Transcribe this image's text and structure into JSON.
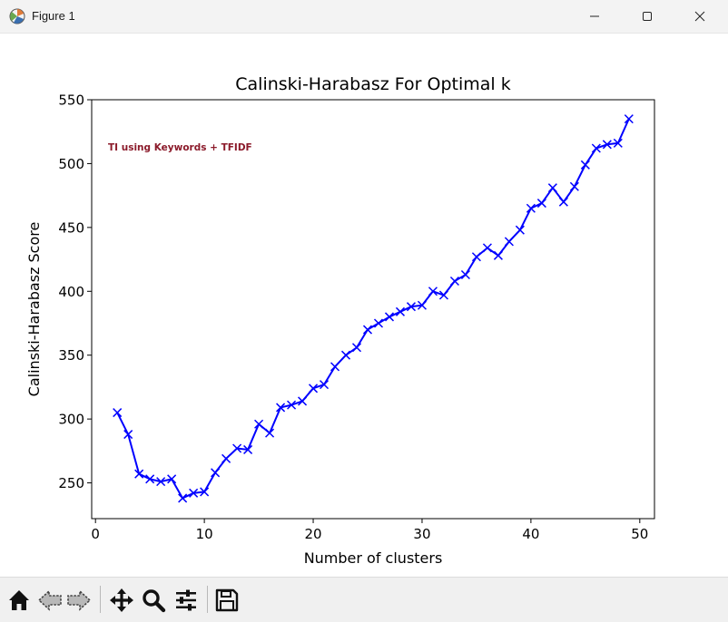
{
  "window": {
    "title": "Figure 1",
    "icon": "figure-app-icon",
    "controls": [
      "minimize-icon",
      "maximize-icon",
      "close-icon"
    ]
  },
  "toolbar": {
    "tools": [
      "home-icon",
      "back-arrow-icon",
      "forward-arrow-icon",
      "pan-icon",
      "zoom-icon",
      "configure-subplots-icon",
      "save-icon"
    ]
  },
  "chart_data": {
    "type": "line",
    "title": "Calinski-Harabasz For Optimal k",
    "xlabel": "Number of clusters",
    "ylabel": "Calinski-Harabasz Score",
    "annotation": "TI using Keywords + TFIDF",
    "annotation_color": "#8b1a2a",
    "xlim": [
      -0.35,
      51.35
    ],
    "ylim": [
      222,
      550
    ],
    "x_ticks": [
      0,
      10,
      20,
      30,
      40,
      50
    ],
    "y_ticks": [
      250,
      300,
      350,
      400,
      450,
      500,
      550
    ],
    "grid": false,
    "series": [
      {
        "color": "#0000ff",
        "marker": "x",
        "x": [
          2,
          3,
          4,
          5,
          6,
          7,
          8,
          9,
          10,
          11,
          12,
          13,
          14,
          15,
          16,
          17,
          18,
          19,
          20,
          21,
          22,
          23,
          24,
          25,
          26,
          27,
          28,
          29,
          30,
          31,
          32,
          33,
          34,
          35,
          36,
          37,
          38,
          39,
          40,
          41,
          42,
          43,
          44,
          45,
          46,
          47,
          48,
          49
        ],
        "y": [
          305,
          288,
          257,
          253,
          251,
          253,
          238,
          242,
          243,
          258,
          269,
          277,
          276,
          296,
          289,
          309,
          311,
          314,
          324,
          327,
          341,
          350,
          356,
          370,
          375,
          380,
          384,
          388,
          389,
          400,
          397,
          408,
          413,
          427,
          434,
          428,
          439,
          448,
          465,
          469,
          481,
          470,
          482,
          499,
          512,
          515,
          516,
          535
        ]
      }
    ]
  }
}
